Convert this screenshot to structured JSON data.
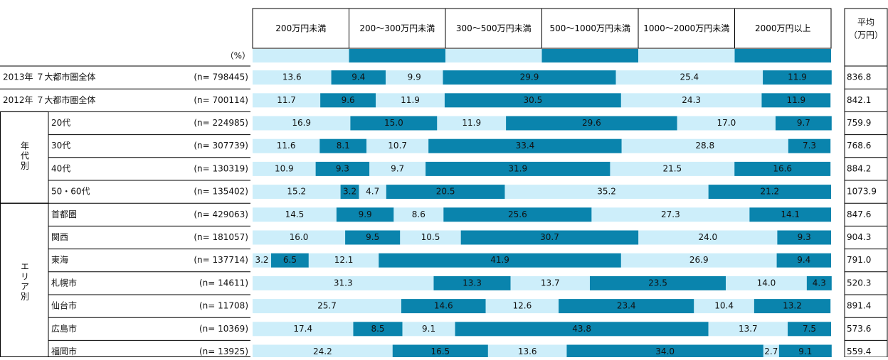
{
  "chart_data": {
    "type": "stacked-bar",
    "unit_label": "（%）",
    "average_header": [
      "平均",
      "（万円）"
    ],
    "xlim": [
      0,
      100
    ],
    "series": [
      {
        "name": "200万円未満",
        "color": "#cdeefa"
      },
      {
        "name": "200～300万円未満",
        "color": "#0a84ad"
      },
      {
        "name": "300～500万円未満",
        "color": "#cdeefa"
      },
      {
        "name": "500～1000万円未満",
        "color": "#0a84ad"
      },
      {
        "name": "1000～2000万円未満",
        "color": "#cdeefa"
      },
      {
        "name": "2000万円以上",
        "color": "#0a84ad"
      }
    ],
    "groups": [
      {
        "rows": [
          {
            "label": "2013年 ７大都市圏全体",
            "n_label": "(n= 798445)",
            "values": [
              13.6,
              9.4,
              9.9,
              29.9,
              25.4,
              11.9
            ],
            "value_labels": [
              "13.6",
              "9.4",
              "9.9",
              "29.9",
              "25.4",
              "11.9"
            ],
            "average": 836.8,
            "average_label": "836.8"
          },
          {
            "label": "2012年 ７大都市圏全体",
            "n_label": "(n= 700114)",
            "values": [
              11.7,
              9.6,
              11.9,
              30.5,
              24.3,
              11.9
            ],
            "value_labels": [
              "11.7",
              "9.6",
              "11.9",
              "30.5",
              "24.3",
              "11.9"
            ],
            "average": 842.1,
            "average_label": "842.1"
          }
        ]
      },
      {
        "label": "年代別",
        "rows": [
          {
            "label": "20代",
            "n_label": "(n= 224985)",
            "values": [
              16.9,
              15.0,
              11.9,
              29.6,
              17.0,
              9.7
            ],
            "value_labels": [
              "16.9",
              "15.0",
              "11.9",
              "29.6",
              "17.0",
              "9.7"
            ],
            "average": 759.9,
            "average_label": "759.9"
          },
          {
            "label": "30代",
            "n_label": "(n= 307739)",
            "values": [
              11.6,
              8.1,
              10.7,
              33.4,
              28.8,
              7.3
            ],
            "value_labels": [
              "11.6",
              "8.1",
              "10.7",
              "33.4",
              "28.8",
              "7.3"
            ],
            "average": 768.6,
            "average_label": "768.6"
          },
          {
            "label": "40代",
            "n_label": "(n= 130319)",
            "values": [
              10.9,
              9.3,
              9.7,
              31.9,
              21.5,
              16.6
            ],
            "value_labels": [
              "10.9",
              "9.3",
              "9.7",
              "31.9",
              "21.5",
              "16.6"
            ],
            "average": 884.2,
            "average_label": "884.2"
          },
          {
            "label": "50・60代",
            "n_label": "(n= 135402)",
            "values": [
              15.2,
              3.2,
              4.7,
              20.5,
              35.2,
              21.2
            ],
            "value_labels": [
              "15.2",
              "3.2",
              "4.7",
              "20.5",
              "35.2",
              "21.2"
            ],
            "average": 1073.9,
            "average_label": "1073.9"
          }
        ]
      },
      {
        "label": "エリア別",
        "rows": [
          {
            "label": "首都圏",
            "n_label": "(n= 429063)",
            "values": [
              14.5,
              9.9,
              8.6,
              25.6,
              27.3,
              14.1
            ],
            "value_labels": [
              "14.5",
              "9.9",
              "8.6",
              "25.6",
              "27.3",
              "14.1"
            ],
            "average": 847.6,
            "average_label": "847.6"
          },
          {
            "label": "関西",
            "n_label": "(n= 181057)",
            "values": [
              16.0,
              9.5,
              10.5,
              30.7,
              24.0,
              9.3
            ],
            "value_labels": [
              "16.0",
              "9.5",
              "10.5",
              "30.7",
              "24.0",
              "9.3"
            ],
            "average": 904.3,
            "average_label": "904.3"
          },
          {
            "label": "東海",
            "n_label": "(n= 137714)",
            "values": [
              3.2,
              6.5,
              12.1,
              41.9,
              26.9,
              9.4
            ],
            "value_labels": [
              "3.2",
              "6.5",
              "12.1",
              "41.9",
              "26.9",
              "9.4"
            ],
            "average": 791.0,
            "average_label": "791.0"
          },
          {
            "label": "札幌市",
            "n_label": "(n=  14611)",
            "values": [
              31.3,
              13.3,
              13.7,
              23.5,
              14.0,
              4.3
            ],
            "value_labels": [
              "31.3",
              "13.3",
              "13.7",
              "23.5",
              "14.0",
              "4.3"
            ],
            "average": 520.3,
            "average_label": "520.3"
          },
          {
            "label": "仙台市",
            "n_label": "(n=  11708)",
            "values": [
              25.7,
              14.6,
              12.6,
              23.4,
              10.4,
              13.2
            ],
            "value_labels": [
              "25.7",
              "14.6",
              "12.6",
              "23.4",
              "10.4",
              "13.2"
            ],
            "average": 891.4,
            "average_label": "891.4"
          },
          {
            "label": "広島市",
            "n_label": "(n=  10369)",
            "values": [
              17.4,
              8.5,
              9.1,
              43.8,
              13.7,
              7.5
            ],
            "value_labels": [
              "17.4",
              "8.5",
              "9.1",
              "43.8",
              "13.7",
              "7.5"
            ],
            "average": 573.6,
            "average_label": "573.6"
          },
          {
            "label": "福岡市",
            "n_label": "(n=  13925)",
            "values": [
              24.2,
              16.5,
              13.6,
              34.0,
              2.7,
              9.1
            ],
            "value_labels": [
              "24.2",
              "16.5",
              "13.6",
              "34.0",
              "2.7",
              "9.1"
            ],
            "average": 559.4,
            "average_label": "559.4"
          }
        ]
      }
    ]
  }
}
